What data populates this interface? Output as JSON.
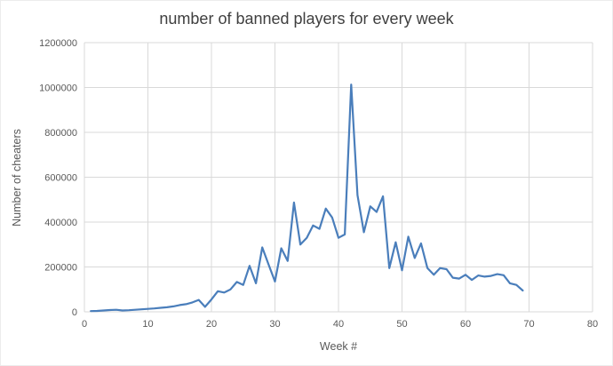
{
  "chart_data": {
    "type": "line",
    "title": "number of banned players for every week",
    "xlabel": "Week #",
    "ylabel": "Number of cheaters",
    "xlim": [
      0,
      80
    ],
    "ylim": [
      0,
      1200000
    ],
    "x_ticks": [
      0,
      10,
      20,
      30,
      40,
      50,
      60,
      70,
      80
    ],
    "y_ticks": [
      0,
      200000,
      400000,
      600000,
      800000,
      1000000,
      1200000
    ],
    "grid": true,
    "legend": false,
    "series_name": "banned players",
    "line_color": "#4a7ebb",
    "gridline_color": "#d9d9d9",
    "tick_label_color": "#595959",
    "title_color": "#3f3f3f",
    "x": [
      1,
      2,
      3,
      4,
      5,
      6,
      7,
      8,
      9,
      10,
      11,
      12,
      13,
      14,
      15,
      16,
      17,
      18,
      19,
      20,
      21,
      22,
      23,
      24,
      25,
      26,
      27,
      28,
      29,
      30,
      31,
      32,
      33,
      34,
      35,
      36,
      37,
      38,
      39,
      40,
      41,
      42,
      43,
      44,
      45,
      46,
      47,
      48,
      49,
      50,
      51,
      52,
      53,
      54,
      55,
      56,
      57,
      58,
      59,
      60,
      61,
      62,
      63,
      64,
      65,
      66,
      67,
      68,
      69
    ],
    "values": [
      3000,
      4000,
      6000,
      8000,
      9000,
      6000,
      7000,
      9000,
      11000,
      13000,
      15000,
      18000,
      20000,
      24000,
      30000,
      34000,
      42000,
      53000,
      22000,
      55000,
      92000,
      86000,
      100000,
      133000,
      120000,
      205000,
      127000,
      287000,
      210000,
      135000,
      283000,
      227000,
      487000,
      300000,
      330000,
      385000,
      370000,
      460000,
      420000,
      330000,
      345000,
      1013000,
      520000,
      355000,
      470000,
      445000,
      515000,
      195000,
      310000,
      185000,
      335000,
      240000,
      305000,
      195000,
      165000,
      195000,
      190000,
      152000,
      148000,
      165000,
      142000,
      162000,
      157000,
      160000,
      168000,
      163000,
      127000,
      120000,
      95000
    ]
  }
}
